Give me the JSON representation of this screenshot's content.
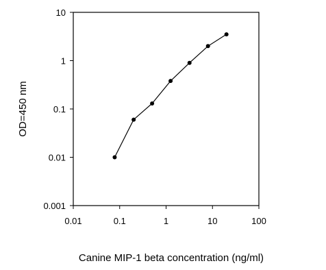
{
  "chart_data": {
    "type": "line",
    "xlabel": "Canine MIP-1 beta concentration (ng/ml)",
    "ylabel": "OD=450 nm",
    "xscale": "log",
    "yscale": "log",
    "xlim": [
      0.01,
      100
    ],
    "ylim": [
      0.001,
      10
    ],
    "x_ticks": [
      "0.01",
      "0.1",
      "1",
      "10",
      "100"
    ],
    "y_ticks": [
      "10",
      "1",
      "0.1",
      "0.01",
      "0.001"
    ],
    "grid": false,
    "legend": "none",
    "series": [
      {
        "x": [
          0.078,
          0.2,
          0.5,
          1.25,
          3.2,
          8,
          20
        ],
        "y": [
          0.01,
          0.06,
          0.13,
          0.38,
          0.9,
          2.0,
          3.5
        ]
      }
    ]
  }
}
